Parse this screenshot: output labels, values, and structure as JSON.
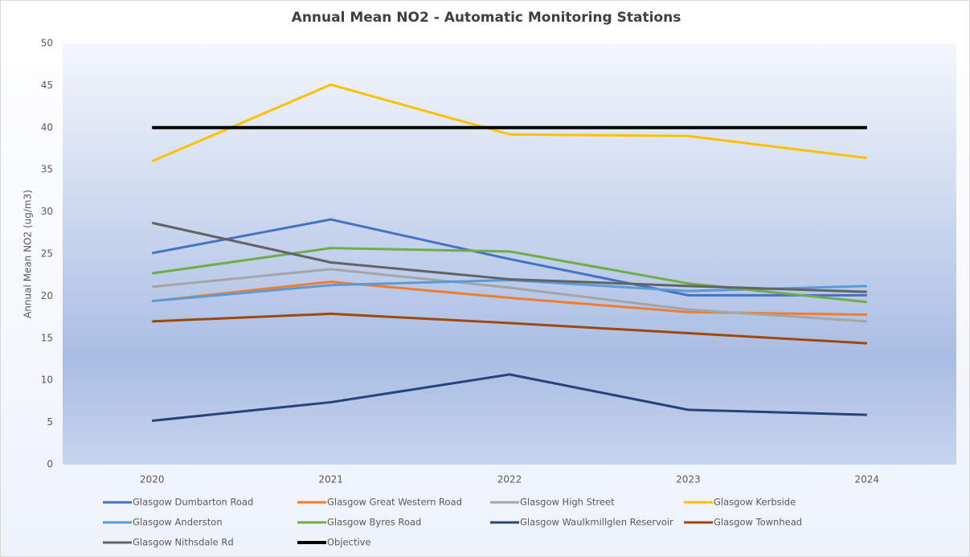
{
  "chart_data": {
    "type": "line",
    "title": "Annual Mean NO2 - Automatic Monitoring Stations",
    "y_label": "Annual Mean NO2 (ug/m3)",
    "categories": [
      "2020",
      "2021",
      "2022",
      "2023",
      "2024"
    ],
    "ylim": [
      0,
      50
    ],
    "yticks": [
      0,
      5,
      10,
      15,
      20,
      25,
      30,
      35,
      40,
      45,
      50
    ],
    "series": [
      {
        "name": "Glasgow Dumbarton Road",
        "color": "#4472c4",
        "values": [
          25.1,
          29.1,
          24.4,
          20.1,
          20.1
        ]
      },
      {
        "name": "Glasgow Great Western Road",
        "color": "#ed7d31",
        "values": [
          19.4,
          21.7,
          19.8,
          18.1,
          17.8
        ]
      },
      {
        "name": "Glasgow High Street",
        "color": "#a5a5a5",
        "values": [
          21.1,
          23.2,
          21.0,
          18.4,
          17.0
        ]
      },
      {
        "name": "Glasgow Kerbside",
        "color": "#ffc000",
        "values": [
          36.0,
          45.1,
          39.2,
          39.0,
          36.4
        ]
      },
      {
        "name": "Glasgow Anderston",
        "color": "#5b9bd5",
        "values": [
          19.4,
          21.3,
          21.9,
          20.6,
          21.2
        ]
      },
      {
        "name": "Glasgow Byres Road",
        "color": "#70ad47",
        "values": [
          22.7,
          25.7,
          25.3,
          21.5,
          19.3
        ]
      },
      {
        "name": "Glasgow Waulkmillglen Reservoir",
        "color": "#264478",
        "values": [
          5.2,
          7.4,
          10.7,
          6.5,
          5.9
        ]
      },
      {
        "name": "Glasgow Townhead",
        "color": "#9e480e",
        "values": [
          17.0,
          17.9,
          16.8,
          15.6,
          14.4
        ]
      },
      {
        "name": "Glasgow Nithsdale Rd",
        "color": "#636363",
        "values": [
          28.7,
          24.0,
          22.0,
          21.2,
          20.5
        ]
      },
      {
        "name": "Objective",
        "color": "#000000",
        "width": 4,
        "values": [
          40,
          40,
          40,
          40,
          40
        ]
      }
    ]
  }
}
